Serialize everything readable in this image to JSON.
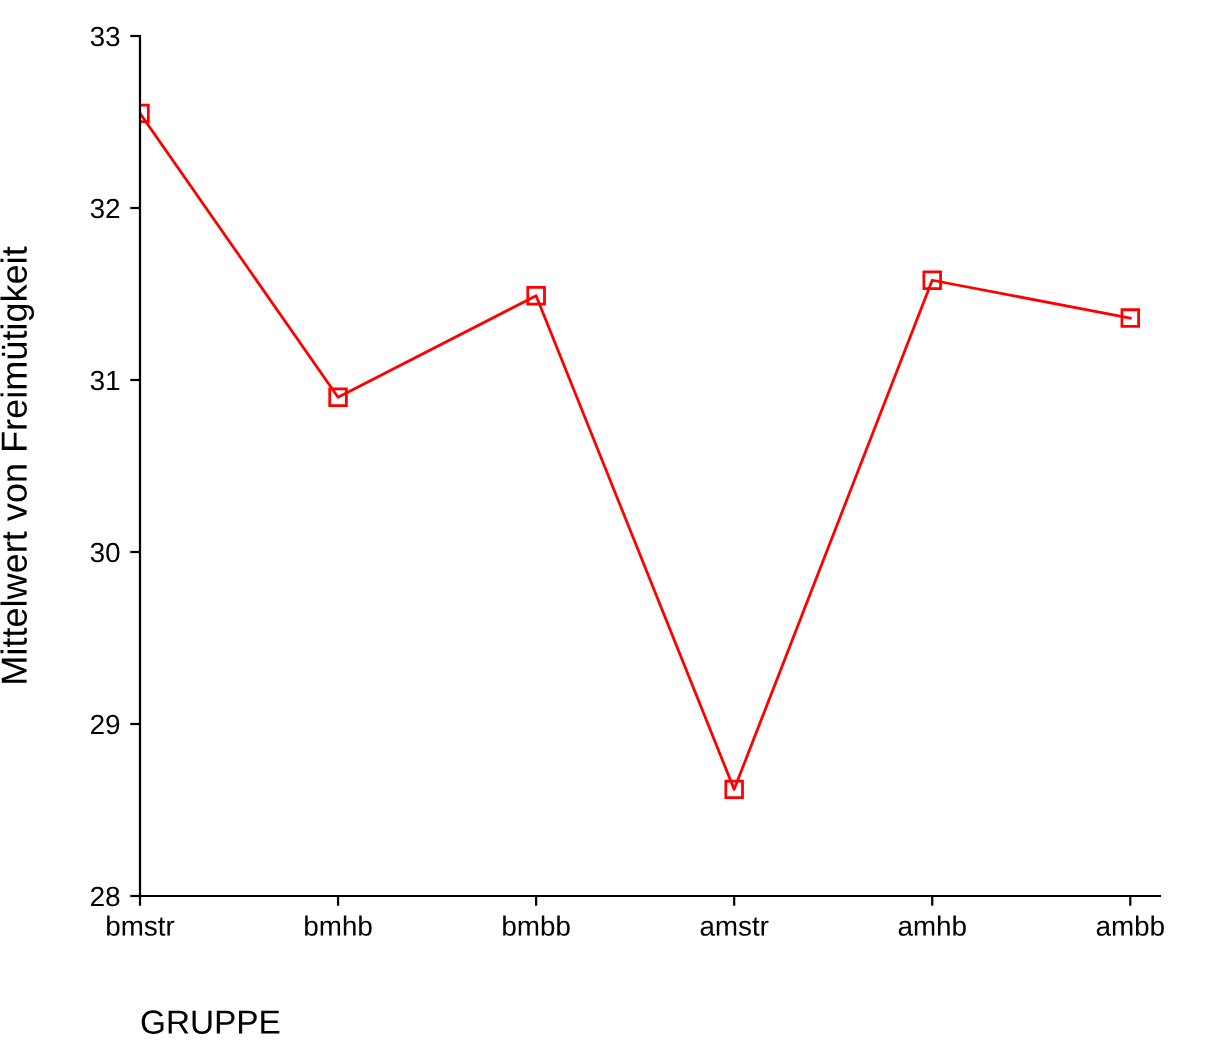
{
  "chart_data": {
    "type": "line",
    "xlabel": "GRUPPE",
    "ylabel": "Mittelwert von Freimütigkeit",
    "categories": [
      "bmstr",
      "bmhb",
      "bmbb",
      "amstr",
      "amhb",
      "ambb"
    ],
    "series": [
      {
        "color": "#ff0000",
        "values": [
          32.55,
          30.9,
          31.49,
          28.62,
          31.58,
          31.36
        ]
      }
    ],
    "ylim": [
      28,
      33
    ],
    "yticks": [
      28,
      29,
      30,
      31,
      32,
      33
    ],
    "grid": false,
    "legend": false,
    "marker": "square",
    "line_style": "solid"
  }
}
